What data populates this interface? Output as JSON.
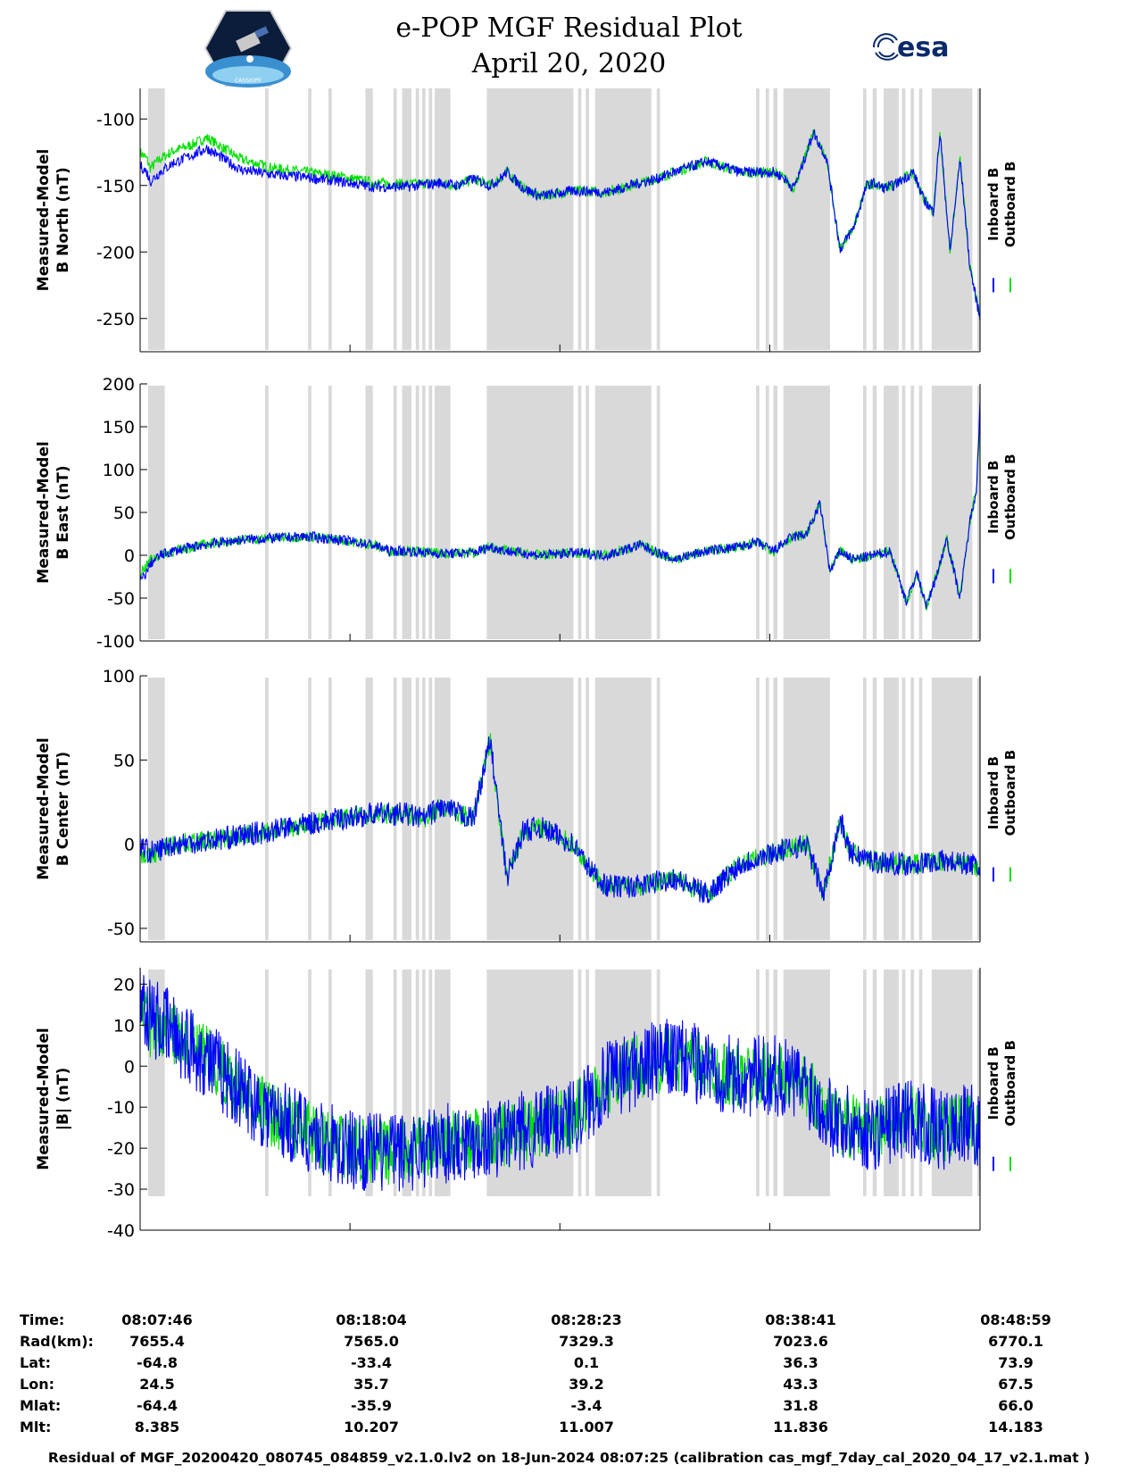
{
  "header": {
    "title": "e-POP MGF Residual Plot",
    "date": "April 20, 2020",
    "left_logo": "cassiope-mission-logo",
    "left_logo_text": "CASSIOPE",
    "right_logo_text": "esa"
  },
  "colors": {
    "inboard": "#0000ff",
    "outboard": "#00e000",
    "gap_band": "#d9d9d9"
  },
  "legend": {
    "inboard": "Inboard B",
    "outboard": "Outboard B"
  },
  "gap_intervals_min": [
    [
      0.24,
      0.74
    ],
    [
      3.75,
      3.85
    ],
    [
      5.04,
      5.14
    ],
    [
      5.65,
      5.75
    ],
    [
      6.76,
      6.98
    ],
    [
      7.6,
      7.7
    ],
    [
      7.86,
      8.14
    ],
    [
      8.27,
      8.37
    ],
    [
      8.46,
      8.56
    ],
    [
      8.66,
      8.76
    ],
    [
      8.84,
      9.31
    ],
    [
      10.4,
      13.0
    ],
    [
      13.14,
      13.24
    ],
    [
      13.37,
      13.47
    ],
    [
      13.65,
      15.34
    ],
    [
      15.5,
      15.6
    ],
    [
      18.48,
      18.58
    ],
    [
      18.77,
      18.87
    ],
    [
      19.0,
      19.12
    ],
    [
      19.3,
      20.7
    ],
    [
      21.69,
      21.79
    ],
    [
      21.98,
      22.1
    ],
    [
      22.31,
      22.76
    ],
    [
      22.86,
      22.96
    ],
    [
      23.12,
      23.22
    ],
    [
      23.37,
      23.47
    ],
    [
      23.75,
      24.97
    ],
    [
      25.12,
      25.22
    ]
  ],
  "chart_data": [
    {
      "type": "line",
      "ylabel_line1": "Measured-Model",
      "ylabel_line2": "B North (nT)",
      "ylim": [
        -275,
        -77
      ],
      "yticks": [
        -250,
        -200,
        -150,
        -100
      ],
      "ytick_labels": [
        "-250",
        "-200",
        "-150",
        "-100"
      ],
      "x_minutes": [
        0,
        0.2,
        0.3,
        0.6,
        1.0,
        1.5,
        2.0,
        3.0,
        4.0,
        5.0,
        6.0,
        7.0,
        8.0,
        9.0,
        9.5,
        10.0,
        10.5,
        10.8,
        11.0,
        11.5,
        12.0,
        13.0,
        14.0,
        15.0,
        15.5,
        16.0,
        17.0,
        18.0,
        18.5,
        19.0,
        19.3,
        19.6,
        19.8,
        20.2,
        20.6,
        21.0,
        21.4,
        21.8,
        22.0,
        22.3,
        22.6,
        22.9,
        23.2,
        23.5,
        23.8,
        24.0,
        24.3,
        24.6,
        24.9,
        25.2
      ],
      "series": [
        {
          "name": "Inboard B",
          "noise": 4,
          "values": [
            -135,
            -140,
            -147,
            -140,
            -133,
            -128,
            -122,
            -138,
            -142,
            -144,
            -147,
            -151,
            -151,
            -148,
            -150,
            -145,
            -150,
            -145,
            -140,
            -152,
            -158,
            -154,
            -155,
            -148,
            -145,
            -140,
            -132,
            -140,
            -140,
            -140,
            -144,
            -152,
            -140,
            -110,
            -130,
            -198,
            -182,
            -150,
            -148,
            -152,
            -150,
            -145,
            -140,
            -160,
            -170,
            -110,
            -200,
            -130,
            -212,
            -250
          ]
        },
        {
          "name": "Outboard B",
          "noise": 4,
          "values": [
            -125,
            -130,
            -137,
            -130,
            -124,
            -120,
            -114,
            -130,
            -137,
            -140,
            -143,
            -148,
            -149,
            -148,
            -150,
            -145,
            -150,
            -145,
            -140,
            -152,
            -158,
            -154,
            -155,
            -148,
            -145,
            -140,
            -132,
            -140,
            -140,
            -140,
            -144,
            -152,
            -140,
            -110,
            -130,
            -198,
            -182,
            -150,
            -148,
            -152,
            -150,
            -145,
            -140,
            -160,
            -170,
            -110,
            -200,
            -130,
            -212,
            -250
          ]
        }
      ]
    },
    {
      "type": "line",
      "ylabel_line1": "Measured-Model",
      "ylabel_line2": "B East (nT)",
      "ylim": [
        -100,
        200
      ],
      "yticks": [
        -100,
        -50,
        0,
        50,
        100,
        150,
        200
      ],
      "ytick_labels": [
        "-100",
        "-50",
        "0",
        "50",
        "100",
        "150",
        "200"
      ],
      "x_minutes": [
        0,
        0.2,
        0.3,
        0.6,
        1.0,
        2.0,
        3.0,
        4.0,
        5.0,
        6.0,
        7.0,
        7.5,
        8.0,
        9.0,
        10.0,
        10.5,
        11.0,
        12.0,
        13.0,
        14.0,
        15.0,
        16.0,
        17.0,
        18.0,
        18.5,
        19.0,
        19.5,
        20.0,
        20.4,
        20.7,
        21.0,
        21.4,
        22.0,
        22.5,
        23.0,
        23.3,
        23.6,
        24.0,
        24.2,
        24.6,
        24.9,
        25.1,
        25.2
      ],
      "series": [
        {
          "name": "Inboard B",
          "noise": 6,
          "values": [
            -30,
            -20,
            -10,
            0,
            5,
            13,
            18,
            20,
            22,
            18,
            12,
            5,
            5,
            2,
            3,
            10,
            5,
            0,
            3,
            0,
            12,
            -5,
            5,
            10,
            15,
            5,
            20,
            25,
            60,
            -20,
            5,
            -5,
            0,
            5,
            -55,
            -20,
            -60,
            -10,
            20,
            -50,
            40,
            80,
            180
          ]
        },
        {
          "name": "Outboard B",
          "noise": 6,
          "values": [
            -20,
            -12,
            -5,
            0,
            5,
            13,
            18,
            20,
            22,
            18,
            12,
            5,
            5,
            2,
            3,
            10,
            5,
            0,
            3,
            0,
            12,
            -5,
            5,
            10,
            15,
            5,
            20,
            25,
            60,
            -20,
            5,
            -5,
            0,
            5,
            -55,
            -20,
            -60,
            -10,
            20,
            -50,
            40,
            80,
            150
          ]
        }
      ]
    },
    {
      "type": "line",
      "ylabel_line1": "Measured-Model",
      "ylabel_line2": "B Center (nT)",
      "ylim": [
        -58,
        100
      ],
      "yticks": [
        -50,
        0,
        50,
        100
      ],
      "ytick_labels": [
        "-50",
        "0",
        "50",
        "100"
      ],
      "x_minutes": [
        0,
        0.3,
        0.6,
        1.0,
        2.0,
        3.0,
        4.0,
        5.0,
        6.0,
        7.0,
        8.0,
        8.5,
        9.0,
        10.0,
        10.5,
        11.0,
        11.5,
        12.0,
        13.0,
        13.5,
        14.0,
        15.0,
        16.0,
        17.0,
        18.0,
        19.0,
        20.0,
        20.5,
        21.0,
        21.3,
        22.0,
        23.0,
        24.0,
        25.0,
        25.2
      ],
      "series": [
        {
          "name": "Inboard B",
          "noise": 7,
          "values": [
            0,
            -5,
            -3,
            0,
            2,
            5,
            8,
            12,
            15,
            18,
            18,
            15,
            22,
            15,
            62,
            -20,
            8,
            10,
            0,
            -15,
            -25,
            -25,
            -20,
            -30,
            -12,
            -5,
            0,
            -30,
            15,
            -5,
            -10,
            -12,
            -10,
            -12,
            -15
          ]
        },
        {
          "name": "Outboard B",
          "noise": 6,
          "values": [
            -5,
            -8,
            -3,
            0,
            2,
            5,
            8,
            12,
            15,
            18,
            18,
            15,
            22,
            15,
            62,
            -20,
            8,
            10,
            0,
            -15,
            -25,
            -25,
            -20,
            -30,
            -12,
            -5,
            0,
            -30,
            15,
            -5,
            -10,
            -12,
            -10,
            -12,
            -15
          ]
        }
      ]
    },
    {
      "type": "line",
      "ylabel_line1": "Measured-Model",
      "ylabel_line2": "|B| (nT)",
      "ylim": [
        -40,
        24
      ],
      "yticks": [
        -40,
        -30,
        -20,
        -10,
        0,
        10,
        20
      ],
      "ytick_labels": [
        "-40",
        "-30",
        "-20",
        "-10",
        "0",
        "10",
        "20"
      ],
      "x_minutes": [
        0,
        0.3,
        0.7,
        1.0,
        2.0,
        3.0,
        4.0,
        5.0,
        6.0,
        7.0,
        8.0,
        9.0,
        10.0,
        11.0,
        12.0,
        13.0,
        14.0,
        15.0,
        16.0,
        17.0,
        18.0,
        19.0,
        20.0,
        21.0,
        22.0,
        23.0,
        24.0,
        25.0,
        25.2
      ],
      "series": [
        {
          "name": "Inboard B",
          "noise": 10,
          "values": [
            18,
            12,
            10,
            8,
            2,
            -6,
            -12,
            -16,
            -20,
            -21,
            -21,
            -19,
            -18,
            -17,
            -15,
            -12,
            -4,
            0,
            2,
            0,
            -3,
            -2,
            -5,
            -14,
            -16,
            -12,
            -16,
            -14,
            -18
          ]
        },
        {
          "name": "Outboard B",
          "noise": 8,
          "values": [
            12,
            10,
            10,
            8,
            2,
            -6,
            -12,
            -16,
            -20,
            -21,
            -21,
            -19,
            -18,
            -17,
            -15,
            -12,
            -4,
            0,
            2,
            0,
            -3,
            -2,
            -5,
            -14,
            -16,
            -12,
            -16,
            -14,
            -18
          ]
        }
      ]
    }
  ],
  "footer_rows": [
    {
      "label": "Time:",
      "values": [
        "08:07:46",
        "08:18:04",
        "08:28:23",
        "08:38:41",
        "08:48:59"
      ]
    },
    {
      "label": "Rad(km):",
      "values": [
        "7655.4",
        "7565.0",
        "7329.3",
        "7023.6",
        "6770.1"
      ]
    },
    {
      "label": "Lat:",
      "values": [
        "-64.8",
        "-33.4",
        "0.1",
        "36.3",
        "73.9"
      ]
    },
    {
      "label": "Lon:",
      "values": [
        "24.5",
        "35.7",
        "39.2",
        "43.3",
        "67.5"
      ]
    },
    {
      "label": "Mlat:",
      "values": [
        "-64.4",
        "-35.9",
        "-3.4",
        "31.8",
        "66.0"
      ]
    },
    {
      "label": "Mlt:",
      "values": [
        "8.385",
        "10.207",
        "11.007",
        "11.836",
        "14.183"
      ]
    }
  ],
  "footer_note": "Residual of MGF_20200420_080745_084859_v2.1.0.lv2 on 18-Jun-2024 08:07:25 (calibration cas_mgf_7day_cal_2020_04_17_v2.1.mat )"
}
